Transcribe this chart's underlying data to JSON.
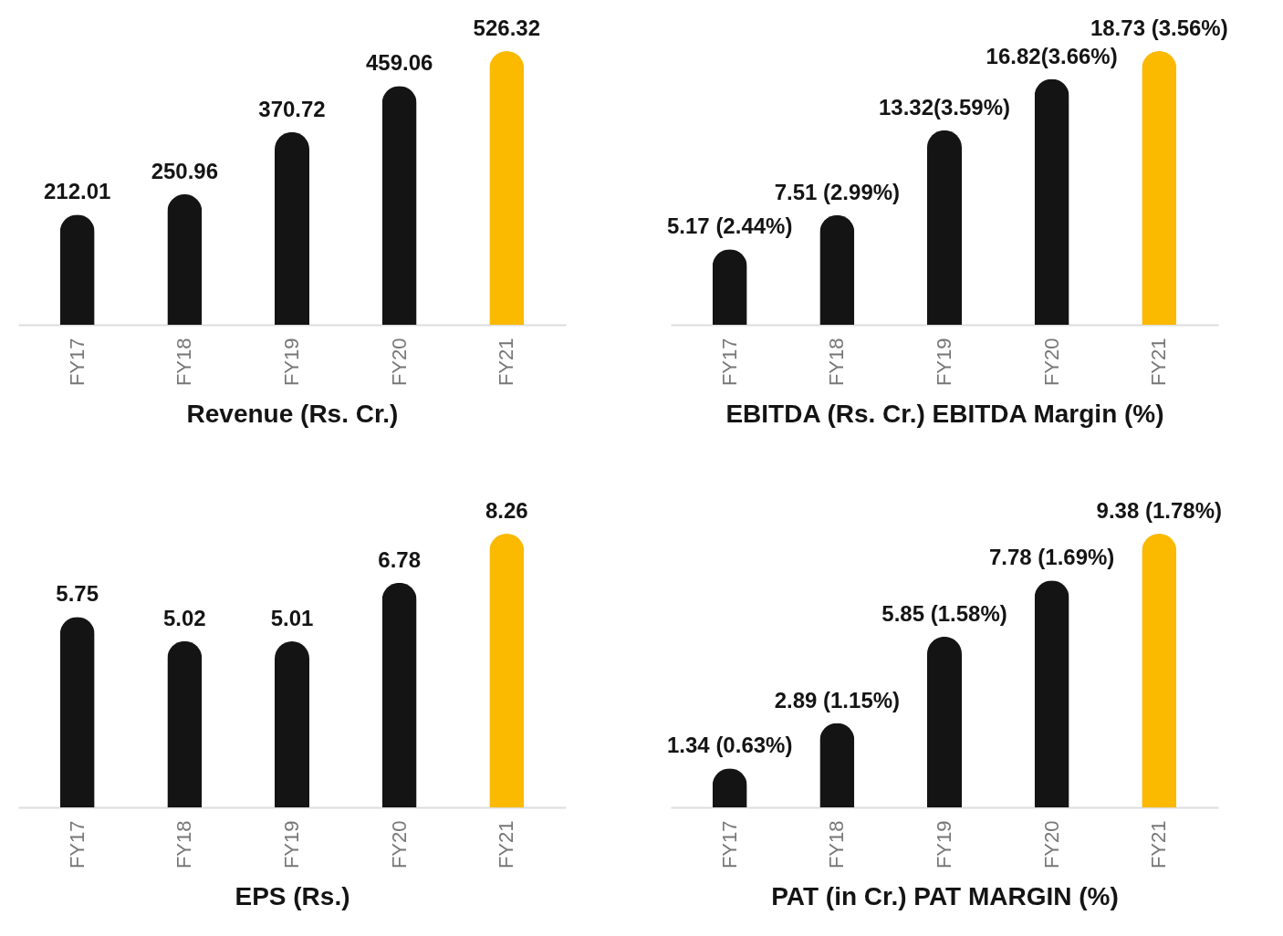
{
  "chart_data": [
    {
      "type": "bar",
      "xlabel": "Revenue (Rs. Cr.)",
      "categories": [
        "FY17",
        "FY18",
        "FY19",
        "FY20",
        "FY21"
      ],
      "values": [
        212.01,
        250.96,
        370.72,
        459.06,
        526.32
      ],
      "colors": [
        "#141414",
        "#141414",
        "#141414",
        "#141414",
        "#fbb900"
      ],
      "data_labels": true
    },
    {
      "type": "bar",
      "xlabel": "EBITDA (Rs. Cr.) EBITDA Margin (%)",
      "categories": [
        "FY17",
        "FY18",
        "FY19",
        "FY20",
        "FY21"
      ],
      "values": [
        5.17,
        7.51,
        13.32,
        16.82,
        18.73
      ],
      "value_labels": [
        "5.17 (2.44%)",
        "7.51 (2.99%)",
        "13.32(3.59%)",
        "16.82(3.66%)",
        "18.73 (3.56%)"
      ],
      "colors": [
        "#141414",
        "#141414",
        "#141414",
        "#141414",
        "#fbb900"
      ]
    },
    {
      "type": "bar",
      "xlabel": "EPS (Rs.)",
      "categories": [
        "FY17",
        "FY18",
        "FY19",
        "FY20",
        "FY21"
      ],
      "values": [
        5.75,
        5.02,
        5.01,
        6.78,
        8.26
      ],
      "colors": [
        "#141414",
        "#141414",
        "#141414",
        "#141414",
        "#fbb900"
      ],
      "data_labels": true
    },
    {
      "type": "bar",
      "xlabel": "PAT (in Cr.) PAT MARGIN (%)",
      "categories": [
        "FY17",
        "FY18",
        "FY19",
        "FY20",
        "FY21"
      ],
      "values": [
        1.34,
        2.89,
        5.85,
        7.78,
        9.38
      ],
      "value_labels": [
        "1.34 (0.63%)",
        "2.89 (1.15%)",
        "5.85 (1.58%)",
        "7.78 (1.69%)",
        "9.38 (1.78%)"
      ],
      "colors": [
        "#141414",
        "#141414",
        "#141414",
        "#141414",
        "#fbb900"
      ]
    }
  ]
}
